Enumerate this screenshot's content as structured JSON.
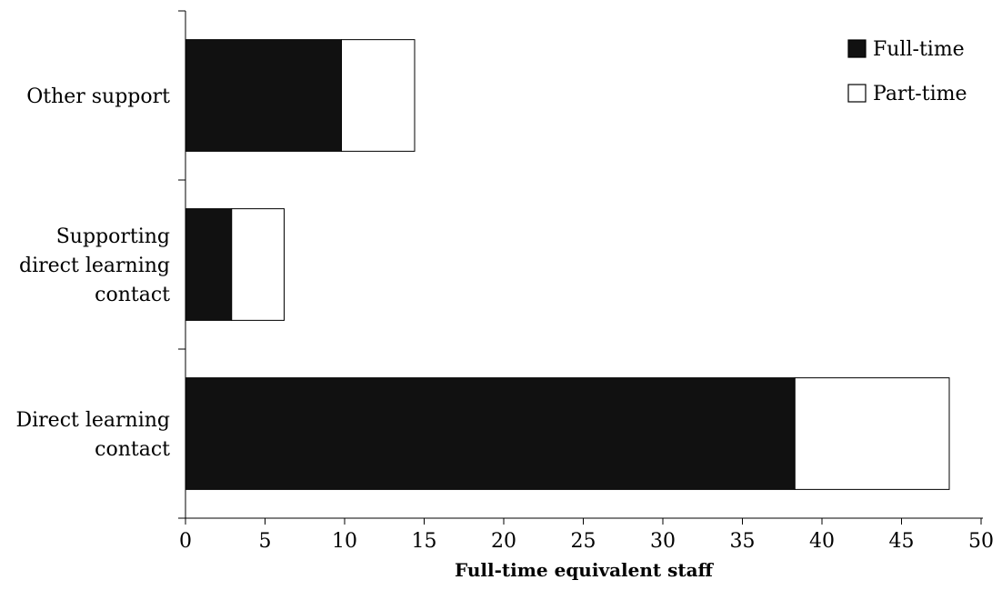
{
  "chart_data": {
    "type": "bar",
    "orientation": "horizontal",
    "stacked": true,
    "categories": [
      "Other support",
      "Supporting direct learning contact",
      "Direct learning contact"
    ],
    "category_lines": [
      [
        "Other support"
      ],
      [
        "Supporting",
        "direct learning",
        "contact"
      ],
      [
        "Direct learning",
        "contact"
      ]
    ],
    "series": [
      {
        "name": "Full-time",
        "color": "#111111",
        "values": [
          9.8,
          2.9,
          38.3
        ]
      },
      {
        "name": "Part-time",
        "color": "#ffffff",
        "values": [
          4.6,
          3.3,
          9.7
        ]
      }
    ],
    "xlabel": "Full-time equivalent staff",
    "xlim": [
      0,
      50
    ],
    "xticks": [
      0,
      5,
      10,
      15,
      20,
      25,
      30,
      35,
      40,
      45,
      50
    ],
    "grid": false,
    "legend": {
      "placement": "top-right",
      "entries": [
        "Full-time",
        "Part-time"
      ]
    }
  }
}
